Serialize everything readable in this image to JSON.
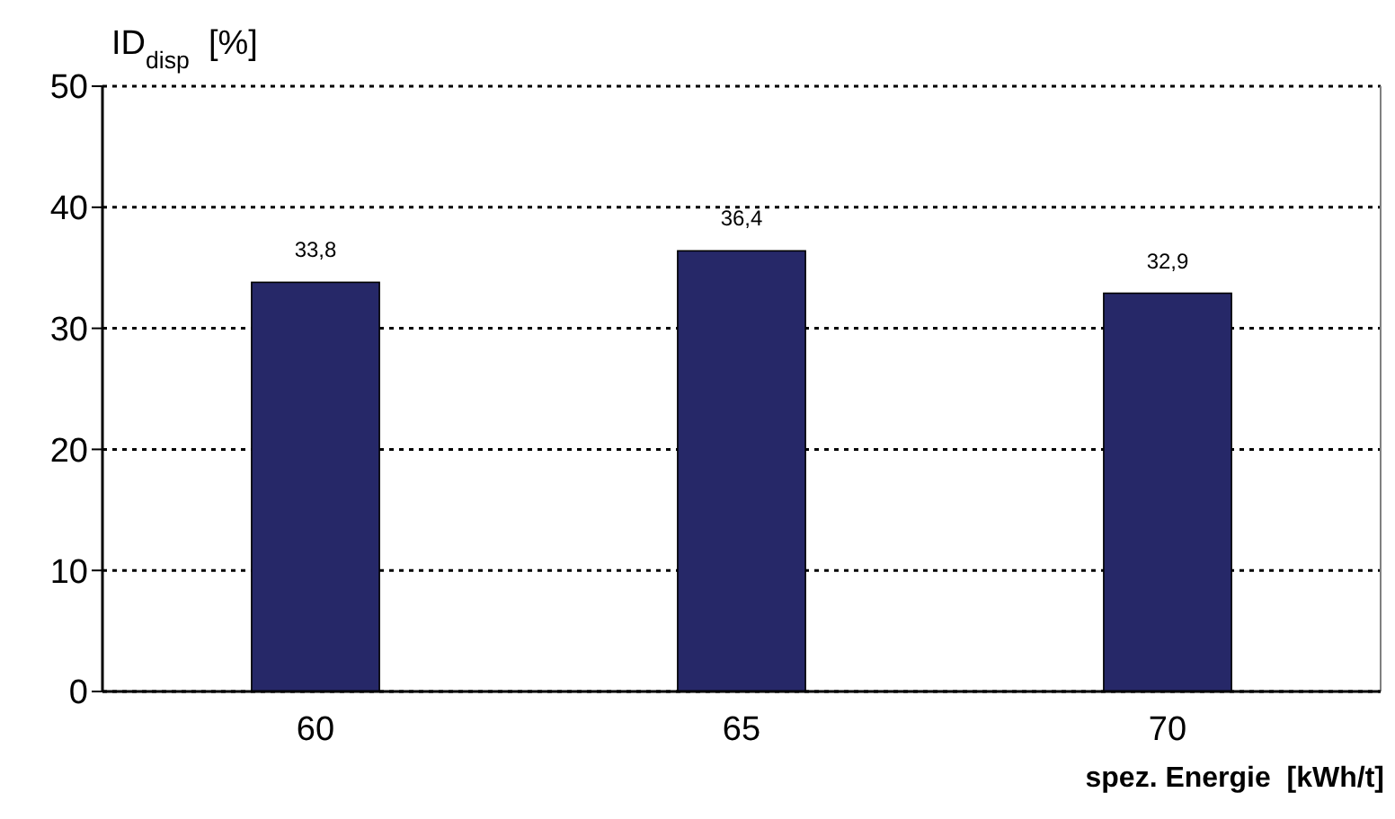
{
  "chart_data": {
    "type": "bar",
    "categories": [
      "60",
      "65",
      "70"
    ],
    "values": [
      33.8,
      36.4,
      32.9
    ],
    "value_labels": [
      "33,8",
      "36,4",
      "32,9"
    ],
    "color": "#262868",
    "ylim": [
      0,
      50
    ],
    "yticks": [
      0,
      10,
      20,
      30,
      40,
      50
    ],
    "grid": "y",
    "ylabel": "ID$_{disp}$  [%]",
    "xlabel": "spez. Energie  [kWh/t]"
  }
}
